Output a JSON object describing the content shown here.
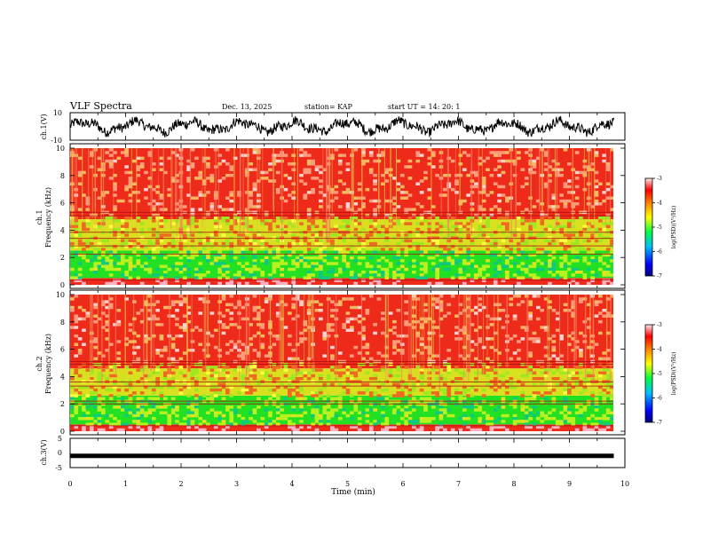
{
  "header": {
    "title": "VLF Spectra",
    "date": "Dec. 13, 2025",
    "station": "station= KAP",
    "start": "start  UT  =   14: 20: 1"
  },
  "chart_data": [
    {
      "type": "line",
      "name": "ch1-waveform",
      "ylabel": "ch.1(V)",
      "ylim": [
        -10,
        10
      ],
      "yticks": [
        "10",
        "-10"
      ],
      "description_series": "noisy oscillation between about -7 and 7 V over 0-9.8 min"
    },
    {
      "type": "heatmap",
      "name": "ch1-spectrogram",
      "ylabel_line1": "ch.1",
      "ylabel_line2": "Frequency  (kHz)",
      "ylim": [
        0,
        10
      ],
      "yticks": [
        "0",
        "2",
        "4",
        "6",
        "8",
        "10"
      ],
      "xlim": [
        0,
        9.8
      ],
      "bands": [
        {
          "from": 0,
          "to": 0.5,
          "level": "red"
        },
        {
          "from": 0.5,
          "to": 2.5,
          "level": "green"
        },
        {
          "from": 2.5,
          "to": 4.8,
          "level": "yellow"
        },
        {
          "from": 4.8,
          "to": 10,
          "level": "red"
        }
      ],
      "lines_khz": [
        0.35,
        2.25,
        2.85,
        3.4,
        3.85,
        5.05,
        5.3
      ],
      "colorbar": {
        "label": "log(PSD)(V²/Hz)",
        "ticks": [
          "-3",
          "-4",
          "-5",
          "-6",
          "-7"
        ],
        "range": [
          -7,
          -3
        ]
      }
    },
    {
      "type": "heatmap",
      "name": "ch2-spectrogram",
      "ylabel_line1": "ch.2",
      "ylabel_line2": "Frequency  (kHz)",
      "ylim": [
        0,
        10
      ],
      "yticks": [
        "0",
        "2",
        "4",
        "6",
        "8",
        "10"
      ],
      "xlim": [
        0,
        9.8
      ],
      "bands": [
        {
          "from": 0,
          "to": 0.5,
          "level": "red"
        },
        {
          "from": 0.5,
          "to": 2.6,
          "level": "green"
        },
        {
          "from": 2.6,
          "to": 4.6,
          "level": "yellow"
        },
        {
          "from": 4.6,
          "to": 10,
          "level": "red"
        }
      ],
      "lines_khz": [
        0.4,
        2.0,
        2.2,
        3.3,
        3.6,
        4.9,
        5.1
      ],
      "colorbar": {
        "label": "log(PSD)(V²/Hz)",
        "ticks": [
          "-3",
          "-4",
          "-5",
          "-6",
          "-7"
        ],
        "range": [
          -7,
          -3
        ]
      }
    },
    {
      "type": "line",
      "name": "ch3-waveform",
      "ylabel": "ch.3(V)",
      "ylim": [
        -5,
        5
      ],
      "yticks": [
        "5",
        "0",
        "-5"
      ],
      "level_v": -1.0,
      "xlabel": "Time  (min)",
      "xticks": [
        "0",
        "1",
        "2",
        "3",
        "4",
        "5",
        "6",
        "7",
        "8",
        "9",
        "10"
      ],
      "xlim": [
        0,
        10
      ]
    }
  ],
  "colors": {
    "red": "#ee2a1a",
    "yellow": "#d8e020",
    "green": "#22e022",
    "colorbar_stops": [
      "#000080",
      "#0000ff",
      "#00c0ff",
      "#00ff40",
      "#ffff00",
      "#ff8000",
      "#ff0000",
      "#ffe8e8"
    ]
  }
}
